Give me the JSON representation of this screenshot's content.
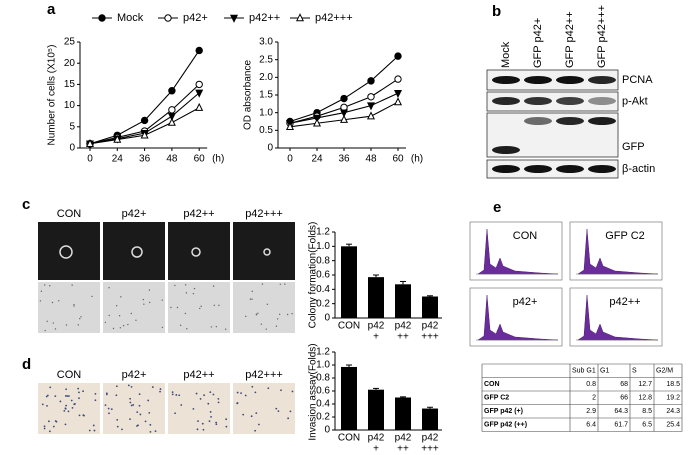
{
  "panel_letters": [
    "a",
    "b",
    "c",
    "d",
    "e"
  ],
  "chart_data": [
    {
      "type": "line",
      "categories": [
        "0",
        "24",
        "36",
        "48",
        "60"
      ],
      "xlabel": "(h)",
      "ylabel": "Number of cells (X10⁵)",
      "ylim": [
        0,
        25
      ],
      "yticks": [
        0,
        5,
        10,
        15,
        20,
        25
      ],
      "series": [
        {
          "name": "Mock",
          "color": "#000000",
          "marker": "filled-circle",
          "values": [
            1,
            3,
            6.5,
            13.5,
            23
          ]
        },
        {
          "name": "p42+",
          "color": "#000000",
          "marker": "open-circle",
          "values": [
            1,
            2.5,
            4,
            9,
            15
          ]
        },
        {
          "name": "p42++",
          "color": "#000000",
          "marker": "filled-down-triangle",
          "values": [
            1,
            2.2,
            3.5,
            7.5,
            13
          ]
        },
        {
          "name": "p42+++",
          "color": "#000000",
          "marker": "open-up-triangle",
          "values": [
            1,
            2,
            3,
            6,
            9.5
          ]
        }
      ]
    },
    {
      "type": "line",
      "categories": [
        "0",
        "24",
        "36",
        "48",
        "60"
      ],
      "xlabel": "(h)",
      "ylabel": "OD absorbance",
      "ylim": [
        0,
        3
      ],
      "yticks": [
        0,
        0.5,
        {
          "value": 1,
          "label": "1.0"
        },
        1.5,
        {
          "value": 2,
          "label": "2.0"
        },
        2.5,
        {
          "value": 3,
          "label": "3.0"
        }
      ],
      "series": [
        {
          "color": "#000000",
          "marker": "filled-circle",
          "values": [
            0.75,
            1.0,
            1.4,
            1.9,
            2.6
          ]
        },
        {
          "color": "#000000",
          "marker": "open-circle",
          "values": [
            0.7,
            0.9,
            1.15,
            1.45,
            1.95
          ]
        },
        {
          "color": "#000000",
          "marker": "filled-down-triangle",
          "values": [
            0.7,
            0.85,
            1.0,
            1.2,
            1.55
          ]
        },
        {
          "color": "#000000",
          "marker": "open-up-triangle",
          "values": [
            0.6,
            0.7,
            0.8,
            0.9,
            1.3
          ]
        }
      ]
    },
    {
      "type": "bar",
      "categories": [
        [
          "CON"
        ],
        [
          "p42",
          "+"
        ],
        [
          "p42",
          "++"
        ],
        [
          "p42",
          "+++"
        ]
      ],
      "ylabel": "Colony formation(Folds)",
      "ylim": [
        0,
        1.2
      ],
      "yticks": [
        0,
        0.2,
        0.4,
        0.6,
        0.8,
        {
          "value": 1,
          "label": "1.0"
        },
        1.2
      ],
      "color": "#000000",
      "values": [
        1.0,
        0.57,
        0.47,
        0.3
      ],
      "errors": [
        0.03,
        0.03,
        0.04,
        0.01
      ]
    },
    {
      "type": "bar",
      "categories": [
        [
          "CON"
        ],
        [
          "p42",
          "+"
        ],
        [
          "p42",
          "++"
        ],
        [
          "p42",
          "+++"
        ]
      ],
      "ylabel": "Invasion assay(Folds)",
      "ylim": [
        0,
        1.2
      ],
      "yticks": [
        0,
        0.2,
        0.4,
        0.6,
        0.8,
        {
          "value": 1,
          "label": "1.0"
        },
        1.2
      ],
      "color": "#000000",
      "values": [
        0.97,
        0.62,
        0.5,
        0.33
      ],
      "errors": [
        0.03,
        0.02,
        0.01,
        0.02
      ]
    }
  ],
  "blot": {
    "lanes": [
      "Mock",
      "GFP p42+",
      "GFP p42++",
      "GFP p42+++"
    ],
    "proteins": [
      "PCNA",
      "p-Akt",
      "GFP",
      "β-actin"
    ]
  },
  "colony_images": {
    "labels": [
      "CON",
      "p42+",
      "p42++",
      "p42+++"
    ]
  },
  "invasion_images": {
    "labels": [
      "CON",
      "p42+",
      "p42++",
      "p42+++"
    ]
  },
  "flow": {
    "labels": [
      "CON",
      "GFP C2",
      "p42+",
      "p42++"
    ],
    "table": {
      "header": [
        "Sub G1",
        "G1",
        "S",
        "G2/M"
      ],
      "rows": [
        [
          "CON",
          0.8,
          68,
          12.7,
          18.5
        ],
        [
          "GFP C2",
          2,
          66,
          12.8,
          19.2
        ],
        [
          "GFP p42 (+)",
          2.9,
          64.3,
          8.5,
          24.3
        ],
        [
          "GFP p42 (++)",
          6.4,
          61.7,
          6.5,
          25.4
        ]
      ]
    }
  }
}
